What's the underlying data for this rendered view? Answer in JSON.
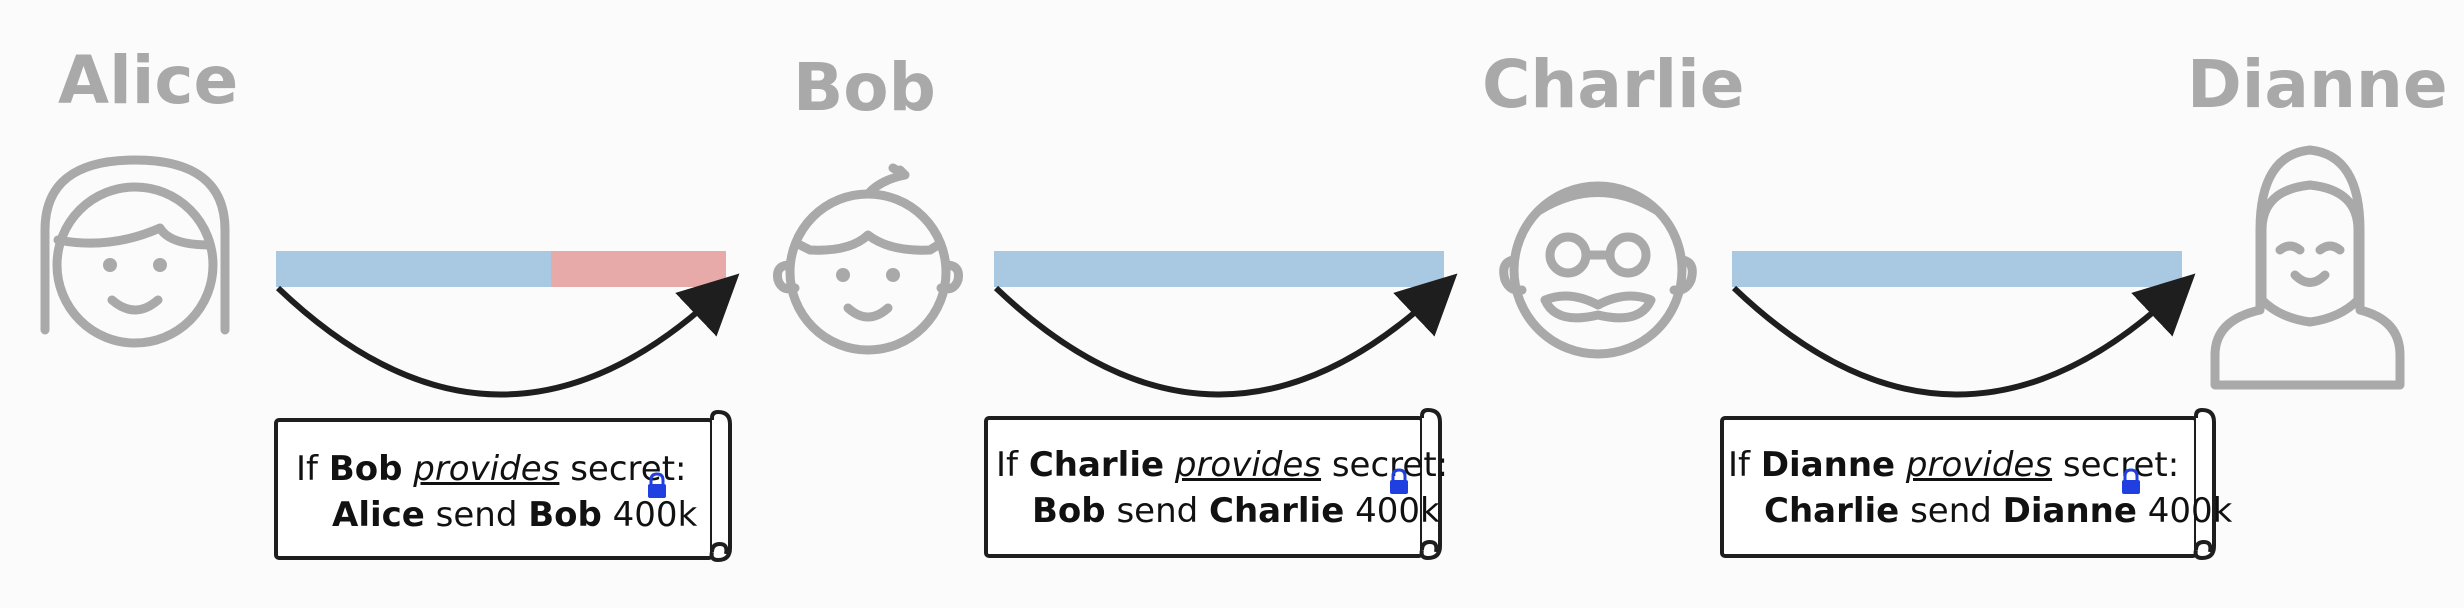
{
  "people": [
    {
      "name": "Alice",
      "icon": "woman-icon"
    },
    {
      "name": "Bob",
      "icon": "baby-icon"
    },
    {
      "name": "Charlie",
      "icon": "old-man-icon"
    },
    {
      "name": "Dianne",
      "icon": "hijab-woman-icon"
    }
  ],
  "channels": [
    {
      "from": "Alice",
      "to": "Bob",
      "local_share": 0.61,
      "colors": [
        "#a9c8e1",
        "#e8a9a9"
      ]
    },
    {
      "from": "Bob",
      "to": "Charlie",
      "local_share": 1.0,
      "colors": [
        "#a9c8e1",
        "#e8a9a9"
      ]
    },
    {
      "from": "Charlie",
      "to": "Dianne",
      "local_share": 1.0,
      "colors": [
        "#a9c8e1",
        "#e8a9a9"
      ]
    }
  ],
  "contracts": [
    {
      "if": "If",
      "receiver": "Bob",
      "provides": "provides",
      "secret": "secret:",
      "sender": "Alice",
      "send": "send",
      "receiver2": "Bob",
      "amount": "400k"
    },
    {
      "if": "If",
      "receiver": "Charlie",
      "provides": "provides",
      "secret": "secret:",
      "sender": "Bob",
      "send": "send",
      "receiver2": "Charlie",
      "amount": "400k"
    },
    {
      "if": "If",
      "receiver": "Dianne",
      "provides": "provides",
      "secret": "secret:",
      "sender": "Charlie",
      "send": "send",
      "receiver2": "Dianne",
      "amount": "400k"
    }
  ],
  "colors": {
    "person": "#a9a9a9",
    "lock": "#1f3fe0",
    "ink": "#1e1e1e"
  }
}
